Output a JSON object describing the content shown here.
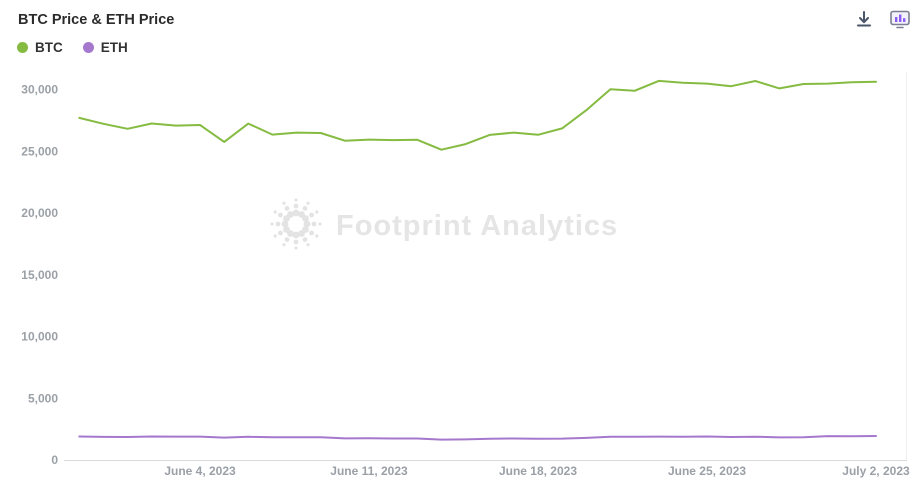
{
  "header": {
    "title": "BTC Price & ETH Price",
    "icons": [
      "download-icon",
      "data-card-icon"
    ]
  },
  "legend": [
    {
      "label": "BTC",
      "color": "#85bb41"
    },
    {
      "label": "ETH",
      "color": "#a678cd"
    }
  ],
  "watermark": {
    "text": "Footprint Analytics"
  },
  "chart_data": {
    "type": "line",
    "title": "BTC Price & ETH Price",
    "grid": false,
    "legend_position": "top-left",
    "ylim": [
      0,
      31800
    ],
    "y_ticks": [
      0,
      5000,
      10000,
      15000,
      20000,
      25000,
      30000
    ],
    "y_tick_labels": [
      "0",
      "5,000",
      "10,000",
      "15,000",
      "20,000",
      "25,000",
      "30,000"
    ],
    "x_tick_labels": [
      {
        "label": "June 4, 2023",
        "index": 5
      },
      {
        "label": "June 11, 2023",
        "index": 12
      },
      {
        "label": "June 18, 2023",
        "index": 19
      },
      {
        "label": "June 25, 2023",
        "index": 26
      },
      {
        "label": "July 2, 2023",
        "index": 33
      }
    ],
    "x": [
      "May 30, 2023",
      "May 31, 2023",
      "June 1, 2023",
      "June 2, 2023",
      "June 3, 2023",
      "June 4, 2023",
      "June 5, 2023",
      "June 6, 2023",
      "June 7, 2023",
      "June 8, 2023",
      "June 9, 2023",
      "June 10, 2023",
      "June 11, 2023",
      "June 12, 2023",
      "June 13, 2023",
      "June 14, 2023",
      "June 15, 2023",
      "June 16, 2023",
      "June 17, 2023",
      "June 18, 2023",
      "June 19, 2023",
      "June 20, 2023",
      "June 21, 2023",
      "June 22, 2023",
      "June 23, 2023",
      "June 24, 2023",
      "June 25, 2023",
      "June 26, 2023",
      "June 27, 2023",
      "June 28, 2023",
      "June 29, 2023",
      "June 30, 2023",
      "July 1, 2023",
      "July 2, 2023"
    ],
    "series": [
      {
        "name": "BTC",
        "color": "#85bb41",
        "values": [
          27702,
          27219,
          26820,
          27249,
          27075,
          27124,
          25760,
          27238,
          26345,
          26508,
          26480,
          25851,
          25940,
          25901,
          25928,
          25124,
          25576,
          26327,
          26510,
          26336,
          26851,
          28327,
          30027,
          29893,
          30695,
          30545,
          30480,
          30271,
          30688,
          30086,
          30445,
          30477,
          30590,
          30620
        ]
      },
      {
        "name": "ETH",
        "color": "#a678cd",
        "values": [
          1901,
          1874,
          1862,
          1905,
          1898,
          1892,
          1811,
          1881,
          1836,
          1847,
          1840,
          1752,
          1757,
          1742,
          1744,
          1650,
          1666,
          1728,
          1740,
          1723,
          1733,
          1789,
          1889,
          1876,
          1893,
          1876,
          1905,
          1862,
          1886,
          1833,
          1844,
          1934,
          1920,
          1940
        ]
      }
    ]
  }
}
